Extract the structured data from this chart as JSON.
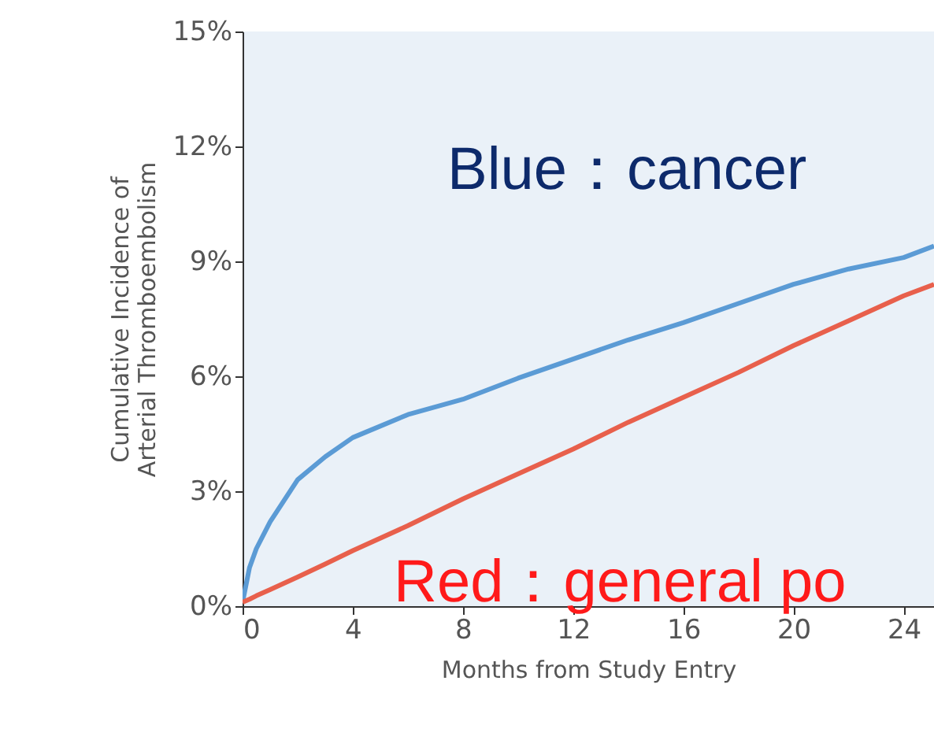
{
  "chart_data": {
    "type": "line",
    "xlabel": "Months from Study Entry",
    "ylabel": "Cumulative Incidence of\nArterial Thromboembolism",
    "x": [
      0,
      0.25,
      0.5,
      1,
      2,
      3,
      4,
      6,
      8,
      10,
      12,
      14,
      16,
      18,
      20,
      22,
      24,
      25.1
    ],
    "series": [
      {
        "color": "#5b9bd5",
        "values": [
          0.1,
          1.0,
          1.5,
          2.2,
          3.3,
          3.9,
          4.4,
          5.0,
          5.4,
          5.95,
          6.45,
          6.95,
          7.4,
          7.9,
          8.4,
          8.8,
          9.1,
          9.4
        ]
      },
      {
        "color": "#e8604c",
        "values": [
          0.1,
          0.18,
          0.27,
          0.43,
          0.76,
          1.1,
          1.45,
          2.1,
          2.8,
          3.45,
          4.1,
          4.8,
          5.45,
          6.1,
          6.8,
          7.45,
          8.1,
          8.4
        ]
      }
    ],
    "xlim": [
      0,
      25.1
    ],
    "xticks": [
      0,
      4,
      8,
      12,
      16,
      20,
      24
    ],
    "ylim": [
      0,
      15
    ],
    "yticks": [
      {
        "value": 0,
        "label": "0%"
      },
      {
        "value": 3,
        "label": "3%"
      },
      {
        "value": 6,
        "label": "6%"
      },
      {
        "value": 9,
        "label": "9%"
      },
      {
        "value": 12,
        "label": "12%"
      },
      {
        "value": 15,
        "label": "15%"
      }
    ],
    "annotations": [
      "Blue：cancer",
      "Red：general po"
    ],
    "grid": false,
    "marker": "none",
    "line_style": "solid"
  }
}
